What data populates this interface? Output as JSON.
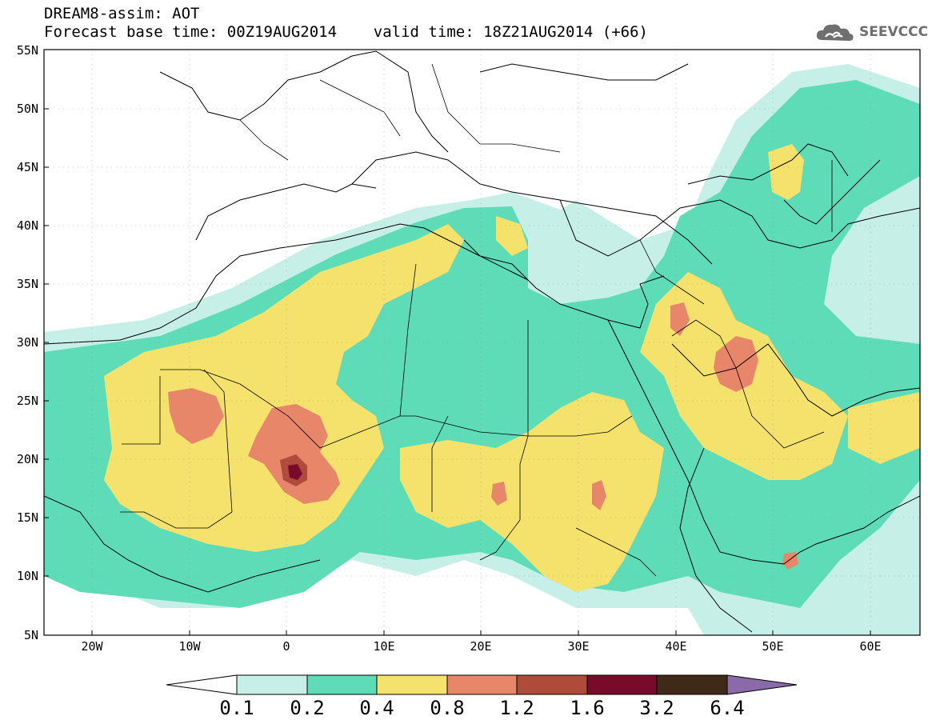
{
  "header": {
    "title_line1": "DREAM8-assim: AOT",
    "title_line2": "Forecast base time: 00Z19AUG2014    valid time: 18Z21AUG2014 (+66)",
    "logo_text": "SEEVCCC"
  },
  "map": {
    "lat_labels": [
      "55N",
      "50N",
      "45N",
      "40N",
      "35N",
      "30N",
      "25N",
      "20N",
      "15N",
      "10N",
      "5N"
    ],
    "lon_labels": [
      "20W",
      "10W",
      "0",
      "10E",
      "20E",
      "30E",
      "40E",
      "50E",
      "60E"
    ],
    "extent": {
      "lon_min": -25,
      "lon_max": 65,
      "lat_min": 5,
      "lat_max": 55
    }
  },
  "colorbar": {
    "levels": [
      "0.1",
      "0.2",
      "0.4",
      "0.8",
      "1.2",
      "1.6",
      "3.2",
      "6.4"
    ],
    "colors": [
      "#ffffff",
      "#c6efe8",
      "#5ddcb7",
      "#f5e26c",
      "#e8866a",
      "#b04a3a",
      "#7a0a2a",
      "#3f2a1a",
      "#8a6aa8"
    ]
  },
  "colors": {
    "aot_0_1_0_2": "#c6efe8",
    "aot_0_2_0_4": "#5ddcb7",
    "aot_0_4_0_8": "#f5e26c",
    "aot_0_8_1_2": "#e8866a",
    "aot_1_2_1_6": "#b04a3a",
    "aot_1_6_3_2": "#7a0a2a"
  }
}
